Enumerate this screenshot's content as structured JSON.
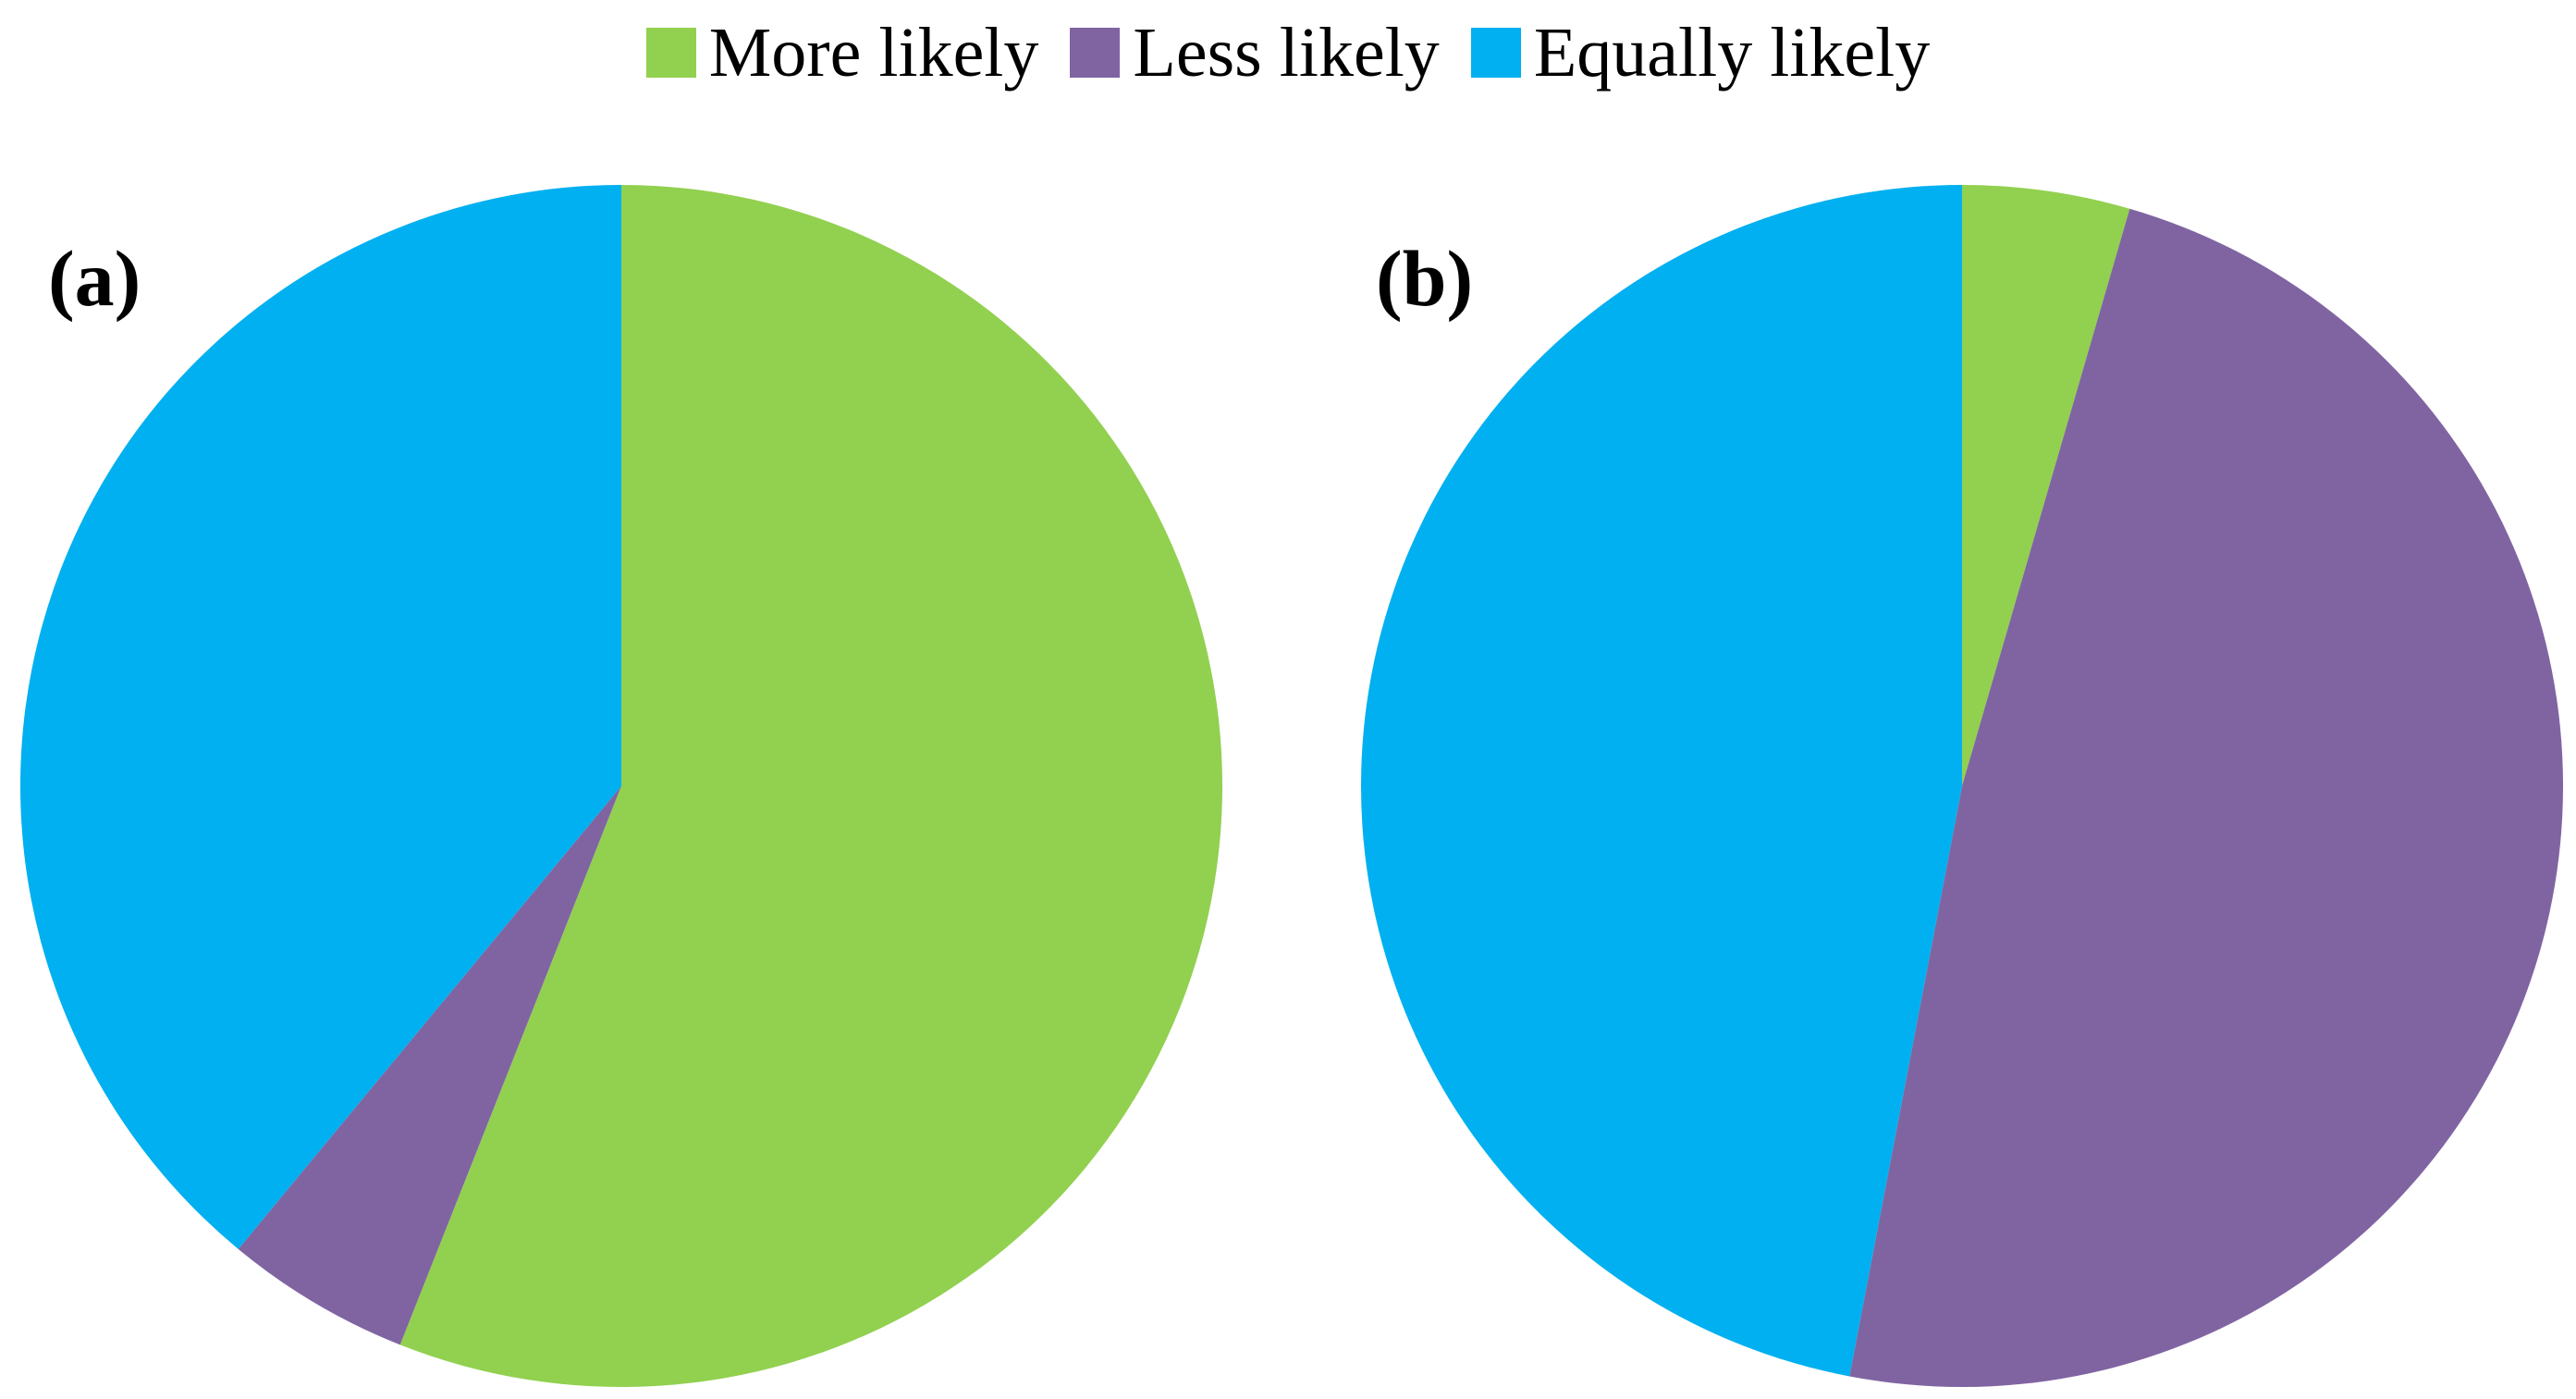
{
  "chart_data": {
    "type": "pie",
    "legend": {
      "placement": "top-center",
      "entries": [
        "More likely",
        "Less likely",
        "Equally likely"
      ]
    },
    "colors": {
      "More likely": "#92d050",
      "Less likely": "#8064a2",
      "Equally likely": "#00b0f0"
    },
    "panels": [
      {
        "label": "(a)",
        "slices": [
          {
            "name": "More likely",
            "value": 56
          },
          {
            "name": "Less likely",
            "value": 5
          },
          {
            "name": "Equally likely",
            "value": 39
          }
        ]
      },
      {
        "label": "(b)",
        "slices": [
          {
            "name": "More likely",
            "value": 4.5
          },
          {
            "name": "Less likely",
            "value": 48.5
          },
          {
            "name": "Equally likely",
            "value": 47
          }
        ]
      }
    ]
  }
}
